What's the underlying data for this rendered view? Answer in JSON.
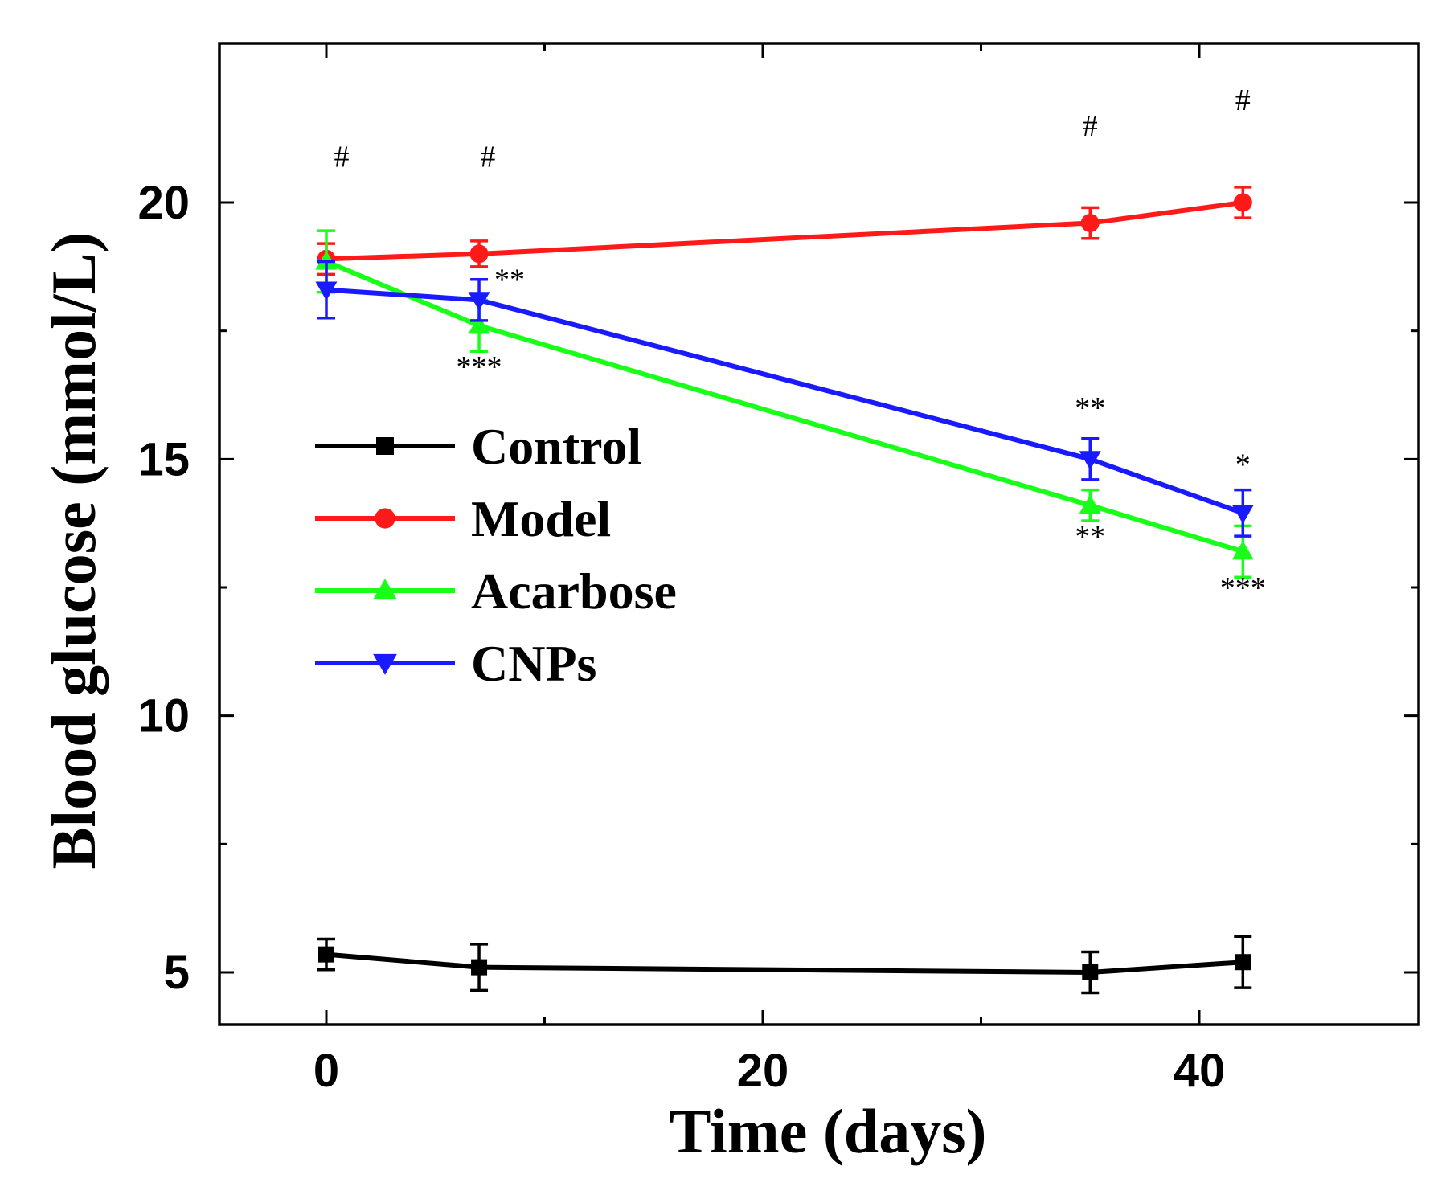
{
  "chart_data": {
    "type": "line",
    "title": "",
    "xlabel": "Time (days)",
    "ylabel": "Blood glucose (mmol/L)",
    "xlim": [
      -5,
      50
    ],
    "ylim": [
      4,
      22.5
    ],
    "x_ticks": [
      0,
      20,
      40
    ],
    "x_minor_ticks": [
      10,
      30
    ],
    "y_ticks": [
      5,
      10,
      15,
      20
    ],
    "y_minor_ticks": [
      7.5,
      12.5,
      17.5
    ],
    "legend_position": "center-left",
    "series": [
      {
        "name": "Control",
        "color": "#000000",
        "marker": "square",
        "x": [
          0,
          7,
          35,
          42
        ],
        "values": [
          5.35,
          5.1,
          5.0,
          5.2
        ],
        "errors": [
          0.3,
          0.45,
          0.4,
          0.5
        ]
      },
      {
        "name": "Model",
        "color": "#ff1a1a",
        "marker": "circle",
        "x": [
          0,
          7,
          35,
          42
        ],
        "values": [
          18.9,
          19.0,
          19.6,
          20.0
        ],
        "errors": [
          0.3,
          0.25,
          0.3,
          0.3
        ]
      },
      {
        "name": "Acarbose",
        "color": "#1aff1a",
        "marker": "triangle-up",
        "x": [
          0,
          7,
          35,
          42
        ],
        "values": [
          18.85,
          17.6,
          14.1,
          13.2
        ],
        "errors": [
          0.6,
          0.5,
          0.3,
          0.5
        ]
      },
      {
        "name": "CNPs",
        "color": "#1a1aff",
        "marker": "triangle-down",
        "x": [
          0,
          7,
          35,
          42
        ],
        "values": [
          18.3,
          18.1,
          15.0,
          13.95
        ],
        "errors": [
          0.55,
          0.4,
          0.4,
          0.45
        ]
      }
    ],
    "annotations": [
      {
        "text": "#",
        "x": 0.7,
        "y": 20.7
      },
      {
        "text": "#",
        "x": 7.4,
        "y": 20.7
      },
      {
        "text": "#",
        "x": 35,
        "y": 21.3
      },
      {
        "text": "#",
        "x": 42,
        "y": 21.8
      },
      {
        "text": "**",
        "x": 8.4,
        "y": 18.3
      },
      {
        "text": "***",
        "x": 7,
        "y": 16.6
      },
      {
        "text": "**",
        "x": 35,
        "y": 15.8
      },
      {
        "text": "**",
        "x": 35,
        "y": 13.3
      },
      {
        "text": "*",
        "x": 42,
        "y": 14.7
      },
      {
        "text": "***",
        "x": 42,
        "y": 12.3
      }
    ]
  }
}
